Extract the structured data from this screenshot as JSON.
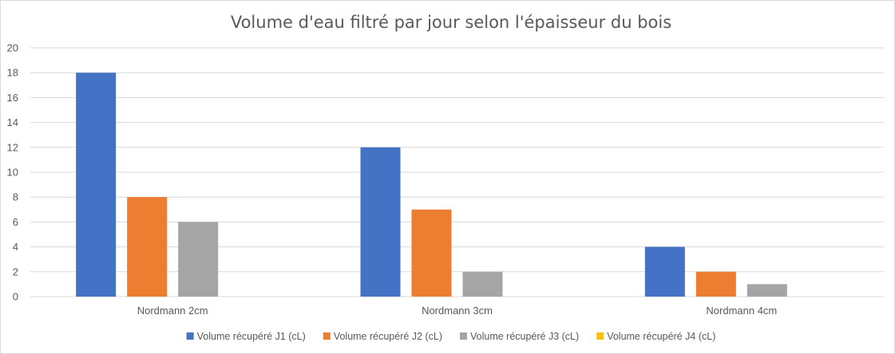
{
  "chart_data": {
    "type": "bar",
    "title": "Volume d'eau filtré par jour selon l'épaisseur du bois",
    "xlabel": "",
    "ylabel": "",
    "ylim": [
      0,
      20
    ],
    "yticks": [
      0,
      2,
      4,
      6,
      8,
      10,
      12,
      14,
      16,
      18,
      20
    ],
    "grid": true,
    "legend_position": "bottom",
    "categories": [
      "Nordmann 2cm",
      "Nordmann 3cm",
      "Nordmann 4cm"
    ],
    "series": [
      {
        "name": "Volume récupéré J1 (cL)",
        "color": "#4472C4",
        "values": [
          18,
          12,
          4
        ]
      },
      {
        "name": "Volume récupéré J2 (cL)",
        "color": "#ED7D31",
        "values": [
          8,
          7,
          2
        ]
      },
      {
        "name": "Volume récupéré J3 (cL)",
        "color": "#A5A5A5",
        "values": [
          6,
          2,
          1
        ]
      },
      {
        "name": "Volume récupéré J4 (cL)",
        "color": "#FFC000",
        "values": [
          0,
          0,
          0
        ]
      }
    ]
  }
}
